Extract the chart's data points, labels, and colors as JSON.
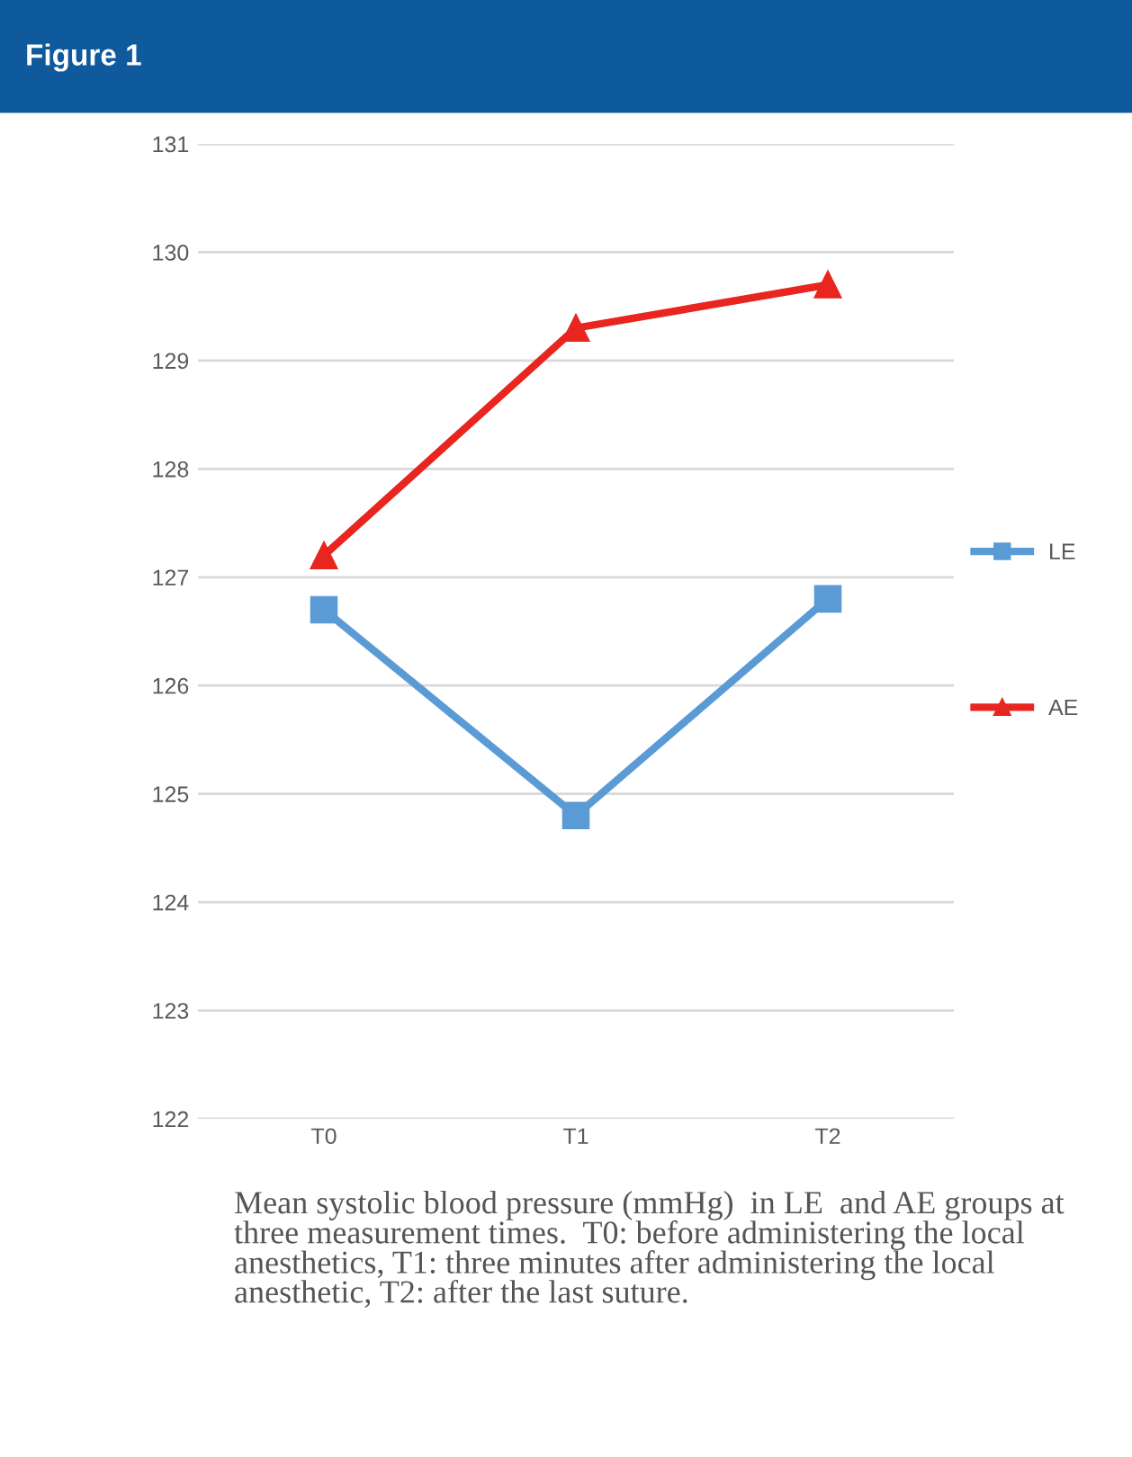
{
  "chart_data": {
    "type": "line",
    "title": "Figure 1",
    "categories": [
      "T0",
      "T1",
      "T2"
    ],
    "series": [
      {
        "name": "LE",
        "color": "#5b9bd5",
        "values": [
          126.7,
          124.8,
          126.8
        ],
        "marker": "square"
      },
      {
        "name": "AE",
        "color": "#e8251f",
        "values": [
          127.2,
          129.3,
          129.7
        ],
        "marker": "triangle"
      }
    ],
    "ylim": [
      122,
      131
    ],
    "yticks": [
      122,
      123,
      124,
      125,
      126,
      127,
      128,
      129,
      130,
      131
    ],
    "grid": "y",
    "legend": "right",
    "line_style": "solid",
    "annotations": [
      "Mean systolic blood pressure (mmHg)  in LE  and AE groups at three measurement times.  T0: before administering the local anesthetics, T1: three minutes after administering the local anesthetic, T2: after the last suture."
    ]
  }
}
